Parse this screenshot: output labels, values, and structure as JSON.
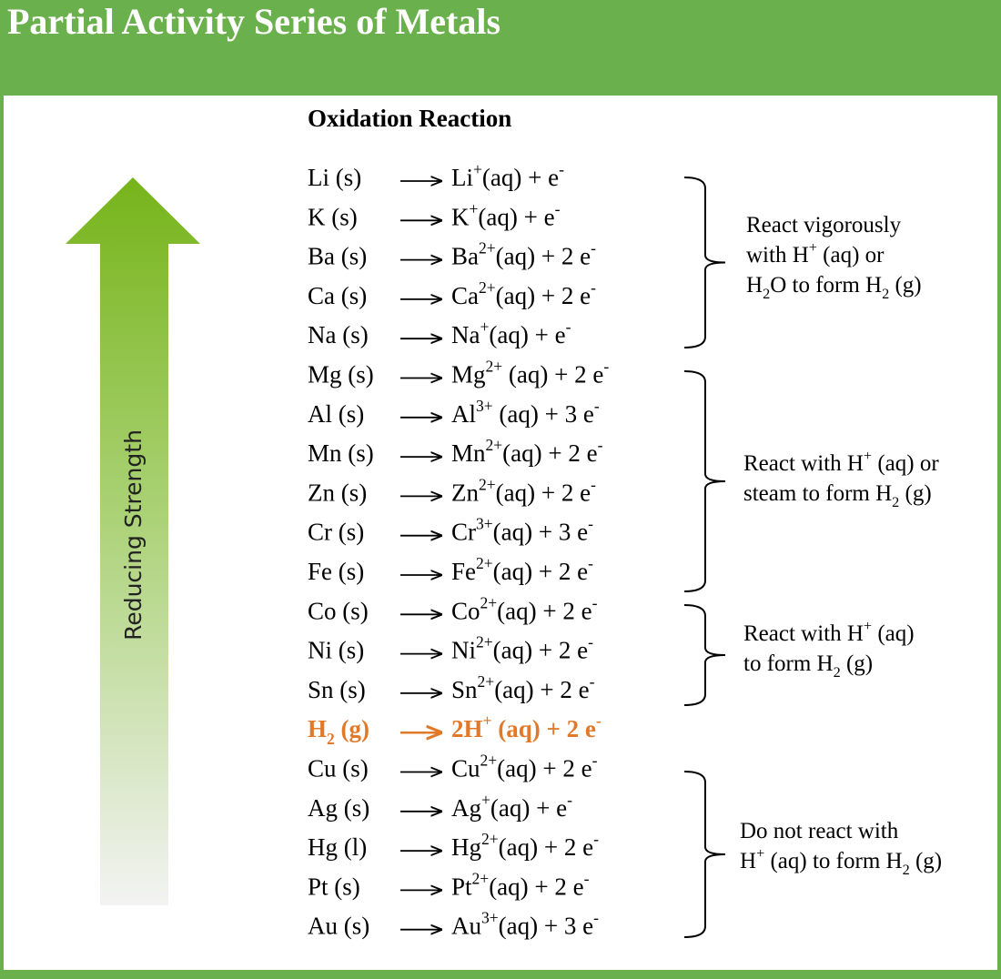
{
  "header": {
    "title": "Partial Activity Series of Metals"
  },
  "column_header": "Oxidation Reaction",
  "axis_label": "Reducing Strength",
  "reactions": [
    {
      "reactant": [
        "Li (s)"
      ],
      "product": [
        "Li",
        {
          "sup": "+"
        },
        "(aq) + e",
        {
          "sup": "-"
        }
      ]
    },
    {
      "reactant": [
        "K (s)"
      ],
      "product": [
        "K",
        {
          "sup": "+"
        },
        "(aq) + e",
        {
          "sup": "-"
        }
      ]
    },
    {
      "reactant": [
        "Ba (s)"
      ],
      "product": [
        "Ba",
        {
          "sup": "2+"
        },
        "(aq) + 2 e",
        {
          "sup": "-"
        }
      ]
    },
    {
      "reactant": [
        "Ca (s)"
      ],
      "product": [
        "Ca",
        {
          "sup": "2+"
        },
        "(aq) + 2 e",
        {
          "sup": "-"
        }
      ]
    },
    {
      "reactant": [
        "Na (s)"
      ],
      "product": [
        "Na",
        {
          "sup": "+"
        },
        "(aq) + e",
        {
          "sup": "-"
        }
      ]
    },
    {
      "reactant": [
        "Mg (s)"
      ],
      "product": [
        "Mg",
        {
          "sup": "2+"
        },
        " (aq) + 2 e",
        {
          "sup": "-"
        }
      ]
    },
    {
      "reactant": [
        "Al (s)"
      ],
      "product": [
        "Al",
        {
          "sup": "3+"
        },
        " (aq) + 3 e",
        {
          "sup": "-"
        }
      ]
    },
    {
      "reactant": [
        "Mn (s)"
      ],
      "product": [
        "Mn",
        {
          "sup": "2+"
        },
        "(aq)  + 2 e",
        {
          "sup": "-"
        }
      ]
    },
    {
      "reactant": [
        "Zn (s)"
      ],
      "product": [
        "Zn",
        {
          "sup": "2+"
        },
        "(aq) + 2 e",
        {
          "sup": "-"
        }
      ]
    },
    {
      "reactant": [
        "Cr (s)"
      ],
      "product": [
        "Cr",
        {
          "sup": "3+"
        },
        "(aq) + 3 e",
        {
          "sup": "-"
        }
      ]
    },
    {
      "reactant": [
        "Fe (s)"
      ],
      "product": [
        "Fe",
        {
          "sup": "2+"
        },
        "(aq) + 2 e",
        {
          "sup": "-"
        }
      ]
    },
    {
      "reactant": [
        "Co (s)"
      ],
      "product": [
        "Co",
        {
          "sup": "2+"
        },
        "(aq) + 2 e",
        {
          "sup": "-"
        }
      ]
    },
    {
      "reactant": [
        "Ni (s)"
      ],
      "product": [
        "Ni",
        {
          "sup": "2+"
        },
        "(aq) + 2 e",
        {
          "sup": "-"
        }
      ]
    },
    {
      "reactant": [
        "Sn (s)"
      ],
      "product": [
        "Sn",
        {
          "sup": "2+"
        },
        "(aq) + 2 e",
        {
          "sup": "-"
        }
      ]
    },
    {
      "reactant": [
        "H",
        {
          "sub": "2"
        },
        " (g)"
      ],
      "product": [
        "2H",
        {
          "sup": "+"
        },
        " (aq)  + 2 e",
        {
          "sup": "-"
        }
      ],
      "highlight": true
    },
    {
      "reactant": [
        "Cu (s)"
      ],
      "product": [
        "Cu",
        {
          "sup": "2+"
        },
        "(aq) + 2 e",
        {
          "sup": "-"
        }
      ]
    },
    {
      "reactant": [
        "Ag (s)"
      ],
      "product": [
        "Ag",
        {
          "sup": "+"
        },
        "(aq) + e",
        {
          "sup": "-"
        }
      ]
    },
    {
      "reactant": [
        "Hg (l)"
      ],
      "product": [
        "Hg",
        {
          "sup": "2+"
        },
        "(aq) + 2 e",
        {
          "sup": "-"
        }
      ]
    },
    {
      "reactant": [
        "Pt (s)"
      ],
      "product": [
        "Pt",
        {
          "sup": "2+"
        },
        "(aq) + 2 e",
        {
          "sup": "-"
        }
      ]
    },
    {
      "reactant": [
        "Au (s)"
      ],
      "product": [
        "Au",
        {
          "sup": "3+"
        },
        "(aq) + 3 e",
        {
          "sup": "-"
        }
      ]
    }
  ],
  "groups": [
    {
      "lines": [
        [
          "React vigorously"
        ],
        [
          "with H",
          {
            "sup": "+"
          },
          " (aq) or"
        ],
        [
          "H",
          {
            "sub": "2"
          },
          "O to form H",
          {
            "sub": "2"
          },
          " (g)"
        ]
      ]
    },
    {
      "lines": [
        [
          "React with H",
          {
            "sup": "+"
          },
          " (aq) or"
        ],
        [
          "steam to form H",
          {
            "sub": "2"
          },
          " (g)"
        ]
      ]
    },
    {
      "lines": [
        [
          "React with H",
          {
            "sup": "+"
          },
          " (aq)"
        ],
        [
          "to form H",
          {
            "sub": "2"
          },
          " (g)"
        ]
      ]
    },
    {
      "lines": [
        [
          "Do not react with"
        ],
        [
          "H",
          {
            "sup": "+"
          },
          " (aq) to form H",
          {
            "sub": "2"
          },
          " (g)"
        ]
      ]
    }
  ]
}
